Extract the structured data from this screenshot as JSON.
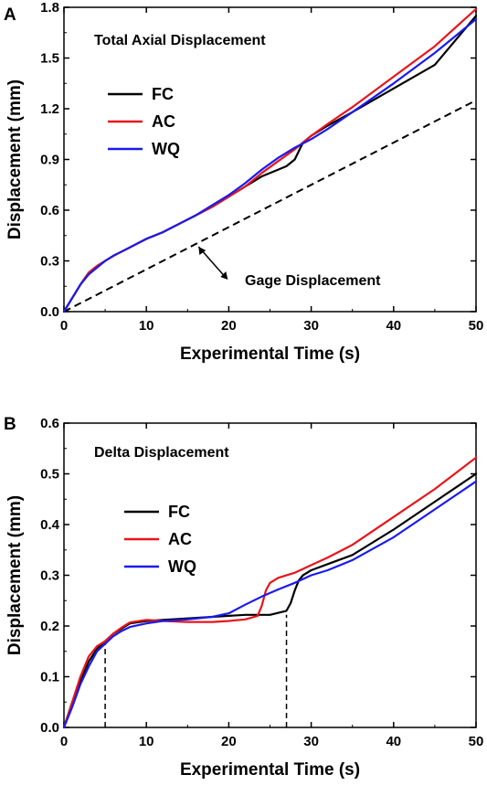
{
  "chart_data": [
    {
      "type": "line",
      "panel_label": "A",
      "title": "Total Axial Displacement",
      "xlabel": "Experimental Time (s)",
      "ylabel": "Displacement (mm)",
      "xlim": [
        0,
        50
      ],
      "ylim": [
        0,
        1.8
      ],
      "xticks": [
        "0",
        "10",
        "20",
        "30",
        "40",
        "50"
      ],
      "yticks": [
        "0.0",
        "0.3",
        "0.6",
        "0.9",
        "1.2",
        "1.5",
        "1.8"
      ],
      "legend_position": "upper-left",
      "grid": false,
      "series": [
        {
          "name": "FC",
          "color": "#000000",
          "x": [
            0,
            1,
            2,
            3,
            4,
            5,
            6,
            8,
            10,
            12,
            14,
            16,
            18,
            20,
            22,
            24,
            26,
            27,
            28,
            29,
            30,
            32,
            35,
            40,
            45,
            50
          ],
          "y": [
            0,
            0.08,
            0.16,
            0.23,
            0.27,
            0.3,
            0.33,
            0.38,
            0.43,
            0.47,
            0.52,
            0.57,
            0.62,
            0.68,
            0.74,
            0.8,
            0.84,
            0.86,
            0.9,
            1.0,
            1.04,
            1.1,
            1.18,
            1.32,
            1.46,
            1.75
          ]
        },
        {
          "name": "AC",
          "color": "#e8151b",
          "x": [
            0,
            1,
            2,
            3,
            4,
            5,
            6,
            8,
            10,
            12,
            14,
            16,
            18,
            20,
            22,
            24,
            26,
            28,
            30,
            32,
            35,
            40,
            45,
            50
          ],
          "y": [
            0,
            0.08,
            0.16,
            0.23,
            0.27,
            0.3,
            0.33,
            0.38,
            0.43,
            0.47,
            0.52,
            0.57,
            0.62,
            0.68,
            0.74,
            0.82,
            0.89,
            0.96,
            1.04,
            1.11,
            1.21,
            1.39,
            1.57,
            1.79
          ]
        },
        {
          "name": "WQ",
          "color": "#1a1aee",
          "x": [
            0,
            1,
            2,
            3,
            4,
            5,
            6,
            8,
            10,
            12,
            14,
            16,
            18,
            20,
            22,
            24,
            26,
            28,
            30,
            32,
            35,
            40,
            45,
            50
          ],
          "y": [
            0,
            0.08,
            0.16,
            0.22,
            0.26,
            0.3,
            0.33,
            0.38,
            0.43,
            0.47,
            0.52,
            0.57,
            0.63,
            0.69,
            0.76,
            0.84,
            0.91,
            0.97,
            1.02,
            1.08,
            1.18,
            1.35,
            1.53,
            1.73
          ]
        }
      ],
      "reference_line": {
        "label": "Gage Displacement",
        "style": "dashed",
        "color": "#000000",
        "x": [
          0,
          50
        ],
        "y": [
          0,
          1.25
        ]
      },
      "annotations": [
        {
          "text": "Gage Displacement",
          "arrow_to_x": 16,
          "arrow_to_y": 0.4
        }
      ]
    },
    {
      "type": "line",
      "panel_label": "B",
      "title": "Delta Displacement",
      "xlabel": "Experimental Time (s)",
      "ylabel": "Displacement (mm)",
      "xlim": [
        0,
        50
      ],
      "ylim": [
        0,
        0.6
      ],
      "xticks": [
        "0",
        "10",
        "20",
        "30",
        "40",
        "50"
      ],
      "yticks": [
        "0.0",
        "0.1",
        "0.2",
        "0.3",
        "0.4",
        "0.5",
        "0.6"
      ],
      "legend_position": "middle-left",
      "grid": false,
      "series": [
        {
          "name": "FC",
          "color": "#000000",
          "x": [
            0,
            1,
            2,
            3,
            4,
            5,
            6,
            7,
            8,
            10,
            12,
            15,
            18,
            20,
            22,
            25,
            27,
            27.5,
            28,
            28.5,
            29,
            30,
            32,
            35,
            40,
            45,
            50
          ],
          "y": [
            0,
            0.05,
            0.09,
            0.13,
            0.155,
            0.17,
            0.185,
            0.195,
            0.205,
            0.21,
            0.212,
            0.215,
            0.218,
            0.22,
            0.222,
            0.222,
            0.23,
            0.245,
            0.27,
            0.29,
            0.3,
            0.31,
            0.322,
            0.34,
            0.39,
            0.445,
            0.5
          ]
        },
        {
          "name": "AC",
          "color": "#e8151b",
          "x": [
            0,
            1,
            2,
            3,
            4,
            5,
            6,
            7,
            8,
            10,
            12,
            15,
            18,
            20,
            22,
            23.5,
            24,
            24.5,
            25,
            26,
            28,
            30,
            32,
            35,
            40,
            45,
            50
          ],
          "y": [
            0,
            0.05,
            0.1,
            0.14,
            0.16,
            0.17,
            0.185,
            0.197,
            0.207,
            0.212,
            0.21,
            0.208,
            0.208,
            0.21,
            0.213,
            0.22,
            0.24,
            0.27,
            0.285,
            0.295,
            0.305,
            0.32,
            0.335,
            0.36,
            0.415,
            0.47,
            0.532
          ]
        },
        {
          "name": "WQ",
          "color": "#1a1aee",
          "x": [
            0,
            1,
            2,
            3,
            4,
            5,
            6,
            7,
            8,
            10,
            12,
            15,
            18,
            20,
            22,
            24,
            26,
            28,
            30,
            32,
            35,
            40,
            45,
            50
          ],
          "y": [
            0,
            0.04,
            0.085,
            0.12,
            0.15,
            0.165,
            0.18,
            0.19,
            0.198,
            0.205,
            0.21,
            0.213,
            0.218,
            0.225,
            0.242,
            0.258,
            0.272,
            0.285,
            0.3,
            0.31,
            0.33,
            0.375,
            0.43,
            0.485
          ]
        }
      ],
      "marker_lines": [
        {
          "x": 5,
          "y_top": 0.17
        },
        {
          "x": 27,
          "y_top": 0.222
        }
      ]
    }
  ]
}
